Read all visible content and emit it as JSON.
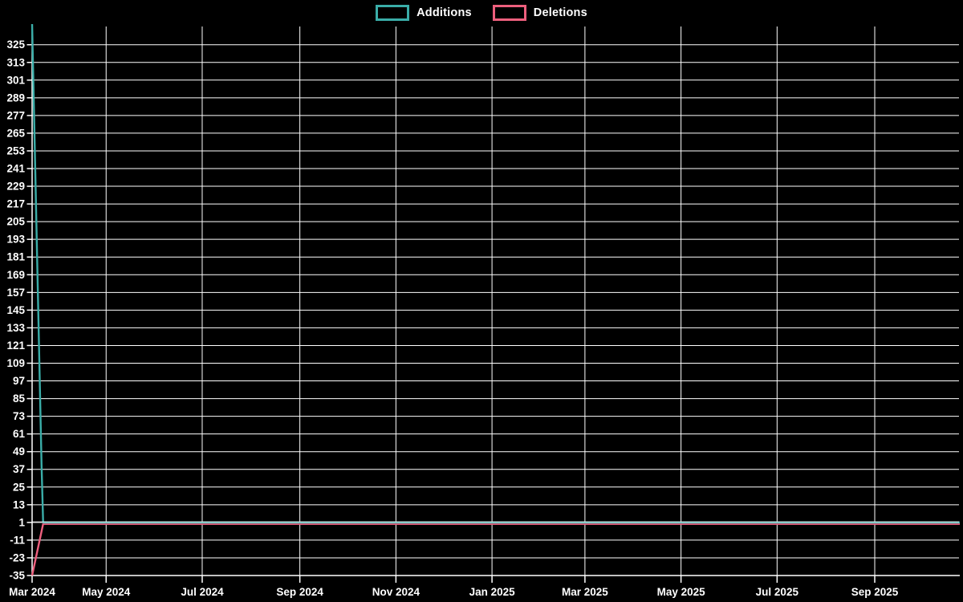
{
  "legend": {
    "items": [
      {
        "label": "Additions",
        "color": "#3aada8"
      },
      {
        "label": "Deletions",
        "color": "#ed5f7d"
      }
    ]
  },
  "chart_data": {
    "type": "line",
    "title": "",
    "xlabel": "",
    "ylabel": "",
    "background_color": "#000000",
    "grid": true,
    "grid_color": "#ffffff",
    "axis_color": "#ffffff",
    "text_color": "#ffffff",
    "legend_position": "top-center",
    "x_axis": {
      "start": "2024-03-15",
      "end": "2025-10-25",
      "ticks": [
        {
          "date": "2024-03-15",
          "label": "Mar 2024"
        },
        {
          "date": "2024-05-01",
          "label": "May 2024"
        },
        {
          "date": "2024-07-01",
          "label": "Jul 2024"
        },
        {
          "date": "2024-09-01",
          "label": "Sep 2024"
        },
        {
          "date": "2024-11-01",
          "label": "Nov 2024"
        },
        {
          "date": "2025-01-01",
          "label": "Jan 2025"
        },
        {
          "date": "2025-03-01",
          "label": "Mar 2025"
        },
        {
          "date": "2025-05-01",
          "label": "May 2025"
        },
        {
          "date": "2025-07-01",
          "label": "Jul 2025"
        },
        {
          "date": "2025-09-01",
          "label": "Sep 2025"
        }
      ]
    },
    "y_axis": {
      "min": -35,
      "max": 339,
      "tick_step": 12,
      "ticks": [
        325,
        313,
        301,
        289,
        277,
        265,
        253,
        241,
        229,
        217,
        205,
        193,
        181,
        169,
        157,
        145,
        133,
        121,
        109,
        97,
        85,
        73,
        61,
        49,
        37,
        25,
        13,
        1,
        -11,
        -23,
        -35
      ]
    },
    "series": [
      {
        "name": "Additions",
        "color": "#3aada8",
        "line_width": 2.4,
        "points": [
          [
            "2024-03-15",
            339
          ],
          [
            "2024-03-16",
            290
          ],
          [
            "2024-03-17",
            240
          ],
          [
            "2024-03-18",
            190
          ],
          [
            "2024-03-19",
            140
          ],
          [
            "2024-03-20",
            90
          ],
          [
            "2024-03-21",
            40
          ],
          [
            "2024-03-22",
            1
          ],
          [
            "2025-10-25",
            1
          ]
        ]
      },
      {
        "name": "Deletions",
        "color": "#ed5f7d",
        "line_width": 2.4,
        "points": [
          [
            "2024-03-15",
            -35
          ],
          [
            "2024-03-22",
            0
          ],
          [
            "2025-10-25",
            0
          ]
        ]
      }
    ]
  }
}
